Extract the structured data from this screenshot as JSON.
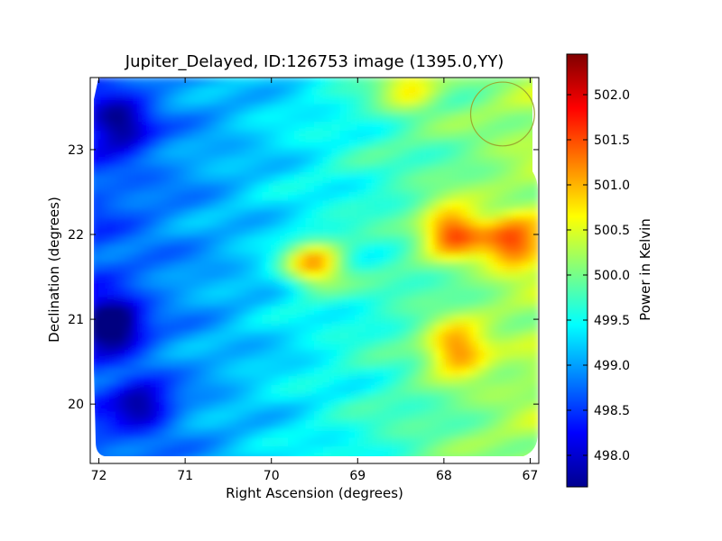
{
  "chart_data": {
    "type": "heatmap",
    "title": "Jupiter_Delayed, ID:126753 image (1395.0,YY)",
    "xlabel": "Right Ascension (degrees)",
    "ylabel": "Declination (degrees)",
    "colorbar_label": "Power in Kelvin",
    "colormap": "jet",
    "xlim": [
      72.1,
      66.9
    ],
    "ylim": [
      19.3,
      23.85
    ],
    "x_ticks": [
      72,
      71,
      70,
      69,
      68,
      67
    ],
    "y_ticks": [
      20,
      21,
      22,
      23
    ],
    "clim": [
      497.65,
      502.45
    ],
    "colorbar_ticks": [
      498.0,
      498.5,
      499.0,
      499.5,
      500.0,
      500.5,
      501.0,
      501.5,
      502.0
    ],
    "features": [
      {
        "ra": 69.5,
        "dec": 21.65,
        "value": 501.8,
        "note": "hot spot"
      },
      {
        "ra": 67.85,
        "dec": 20.65,
        "value": 501.6,
        "note": "warm region"
      },
      {
        "ra": 67.2,
        "dec": 21.9,
        "value": 501.6,
        "note": "warm edge"
      },
      {
        "ra": 67.9,
        "dec": 22.05,
        "value": 501.9,
        "note": "warm streak"
      },
      {
        "ra": 68.4,
        "dec": 23.75,
        "value": 501.0,
        "note": "warm top"
      },
      {
        "ra": 71.85,
        "dec": 20.95,
        "value": 498.0,
        "note": "cold region"
      },
      {
        "ra": 71.75,
        "dec": 23.3,
        "value": 498.5,
        "note": "cold region"
      },
      {
        "ra": 71.5,
        "dec": 20.0,
        "value": 498.7,
        "note": "cool region"
      }
    ],
    "marker": {
      "type": "circle",
      "ra": 67.32,
      "dec": 23.42,
      "radius_deg": 0.37,
      "color": "#9aa832"
    },
    "grid": false
  }
}
